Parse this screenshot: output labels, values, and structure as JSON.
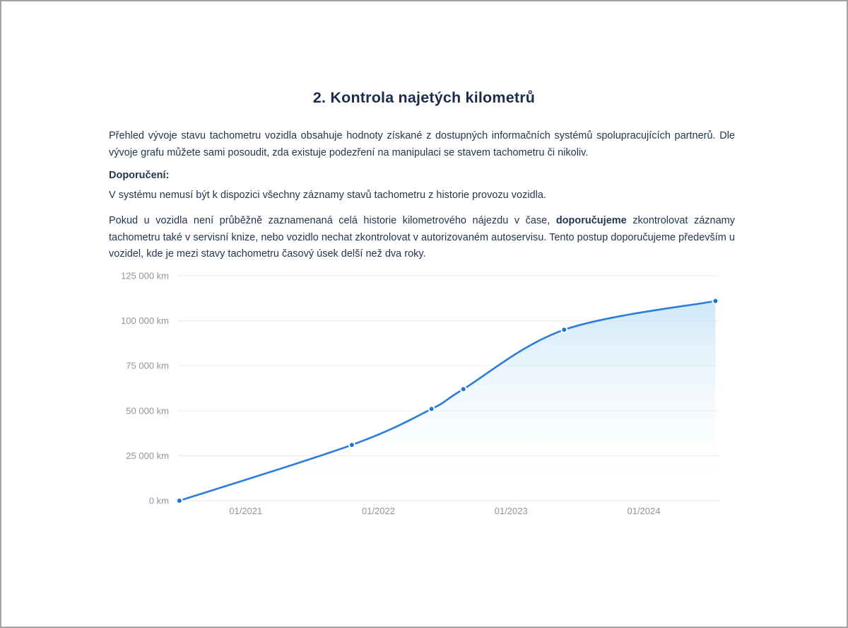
{
  "section": {
    "title": "2. Kontrola najetých kilometrů",
    "intro": "Přehled vývoje stavu tachometru vozidla obsahuje hodnoty získané z dostupných informačních systémů spolupracujících partnerů. Dle vývoje grafu můžete sami posoudit, zda existuje podezření na manipulaci se stavem tachometru či nikoliv.",
    "recommendation_label": "Doporučení:",
    "note": "V systému nemusí být k dispozici všechny záznamy stavů tachometru z historie provozu vozidla.",
    "advice_part1": "Pokud u vozidla není průběžně zaznamenaná celá historie kilometrového nájezdu v čase, ",
    "advice_bold": "doporučujeme",
    "advice_part2": " zkontrolovat záznamy tachometru také v servisní knize, nebo vozidlo nechat zkontrolovat v autorizovaném autoservisu. Tento postup doporučujeme především u vozidel, kde je mezi stavy tachometru časový úsek delší než dva roky."
  },
  "chart_data": {
    "type": "line",
    "title": "",
    "xlabel": "",
    "ylabel": "",
    "legend": "none",
    "grid": "horizontal",
    "x_range": [
      2020.49,
      2024.57
    ],
    "y_range": [
      0,
      125000
    ],
    "x_ticks": [
      {
        "x": 2021,
        "label": "01/2021"
      },
      {
        "x": 2022,
        "label": "01/2022"
      },
      {
        "x": 2023,
        "label": "01/2023"
      },
      {
        "x": 2024,
        "label": "01/2024"
      }
    ],
    "y_ticks": [
      {
        "value": 0,
        "label": "0 km"
      },
      {
        "value": 25000,
        "label": "25 000 km"
      },
      {
        "value": 50000,
        "label": "50 000 km"
      },
      {
        "value": 75000,
        "label": "75 000 km"
      },
      {
        "value": 100000,
        "label": "100 000 km"
      },
      {
        "value": 125000,
        "label": "125 000 km"
      }
    ],
    "points": [
      {
        "x": 2020.5,
        "km": 0
      },
      {
        "x": 2021.8,
        "km": 31000
      },
      {
        "x": 2022.4,
        "km": 51000
      },
      {
        "x": 2022.64,
        "km": 62000
      },
      {
        "x": 2023.4,
        "km": 95000
      },
      {
        "x": 2024.54,
        "km": 111000
      }
    ],
    "colors": {
      "line": "#2b7cdb",
      "point": "#2172d4",
      "point_ring": "#ffffff",
      "area_top": "#bfe0f5",
      "gridline": "#ebeef0",
      "tick_label": "#8f959e"
    }
  }
}
